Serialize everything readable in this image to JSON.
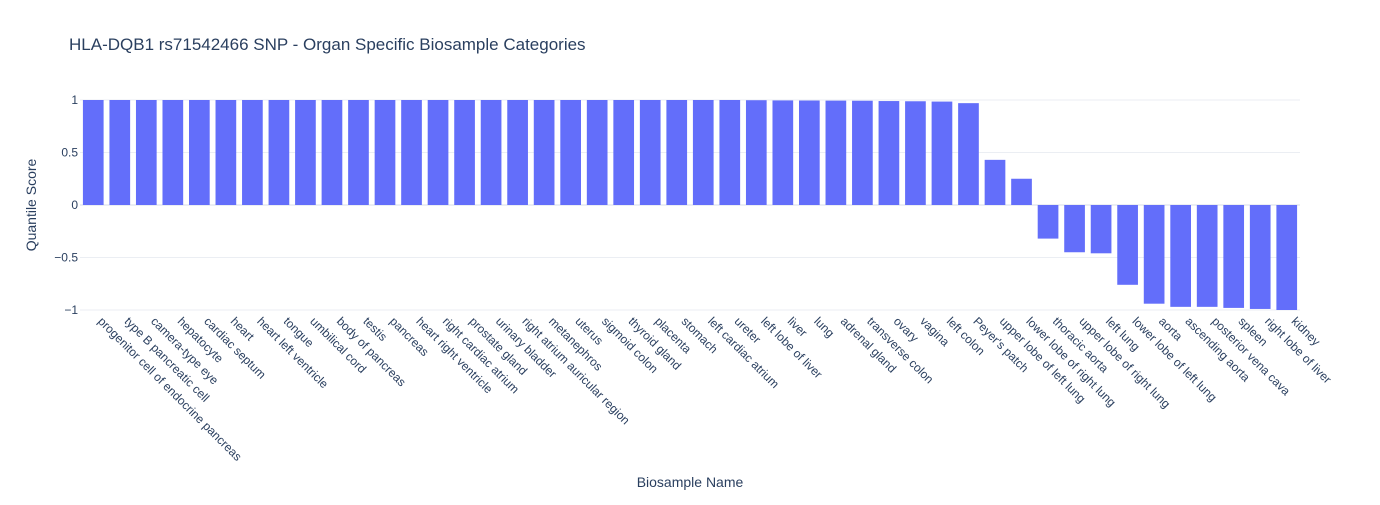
{
  "chart_data": {
    "type": "bar",
    "title": "HLA-DQB1 rs71542466 SNP - Organ Specific Biosample Categories",
    "xlabel": "Biosample Name",
    "ylabel": "Quantile Score",
    "ylim": [
      -1,
      1
    ],
    "yticks": [
      1,
      0.5,
      0,
      -0.5,
      -1
    ],
    "ytick_labels": [
      "1",
      "0.5",
      "0",
      "−0.5",
      "−1"
    ],
    "grid": true,
    "bar_color": "#636efa",
    "categories": [
      "progenitor cell of endocrine pancreas",
      "type B pancreatic cell",
      "camera-type eye",
      "hepatocyte",
      "cardiac septum",
      "heart",
      "heart left ventricle",
      "tongue",
      "umbilical cord",
      "body of pancreas",
      "testis",
      "pancreas",
      "heart right ventricle",
      "right cardiac atrium",
      "prostate gland",
      "urinary bladder",
      "right atrium auricular region",
      "metanephros",
      "uterus",
      "sigmoid colon",
      "thyroid gland",
      "placenta",
      "stomach",
      "left cardiac atrium",
      "ureter",
      "left lobe of liver",
      "liver",
      "lung",
      "adrenal gland",
      "transverse colon",
      "ovary",
      "vagina",
      "left colon",
      "Peyer's patch",
      "upper lobe of left lung",
      "lower lobe of right lung",
      "thoracic aorta",
      "upper lobe of right lung",
      "left lung",
      "lower lobe of left lung",
      "aorta",
      "ascending aorta",
      "posterior vena cava",
      "spleen",
      "right lobe of liver",
      "kidney"
    ],
    "values": [
      1,
      1,
      1,
      1,
      1,
      1,
      1,
      1,
      1,
      1,
      1,
      1,
      1,
      1,
      1,
      1,
      1,
      1,
      1,
      1,
      1,
      1,
      1,
      1,
      1,
      0.998,
      0.996,
      0.995,
      0.994,
      0.993,
      0.99,
      0.988,
      0.985,
      0.97,
      0.43,
      0.25,
      -0.32,
      -0.45,
      -0.46,
      -0.76,
      -0.94,
      -0.97,
      -0.97,
      -0.98,
      -0.99,
      -1
    ]
  }
}
